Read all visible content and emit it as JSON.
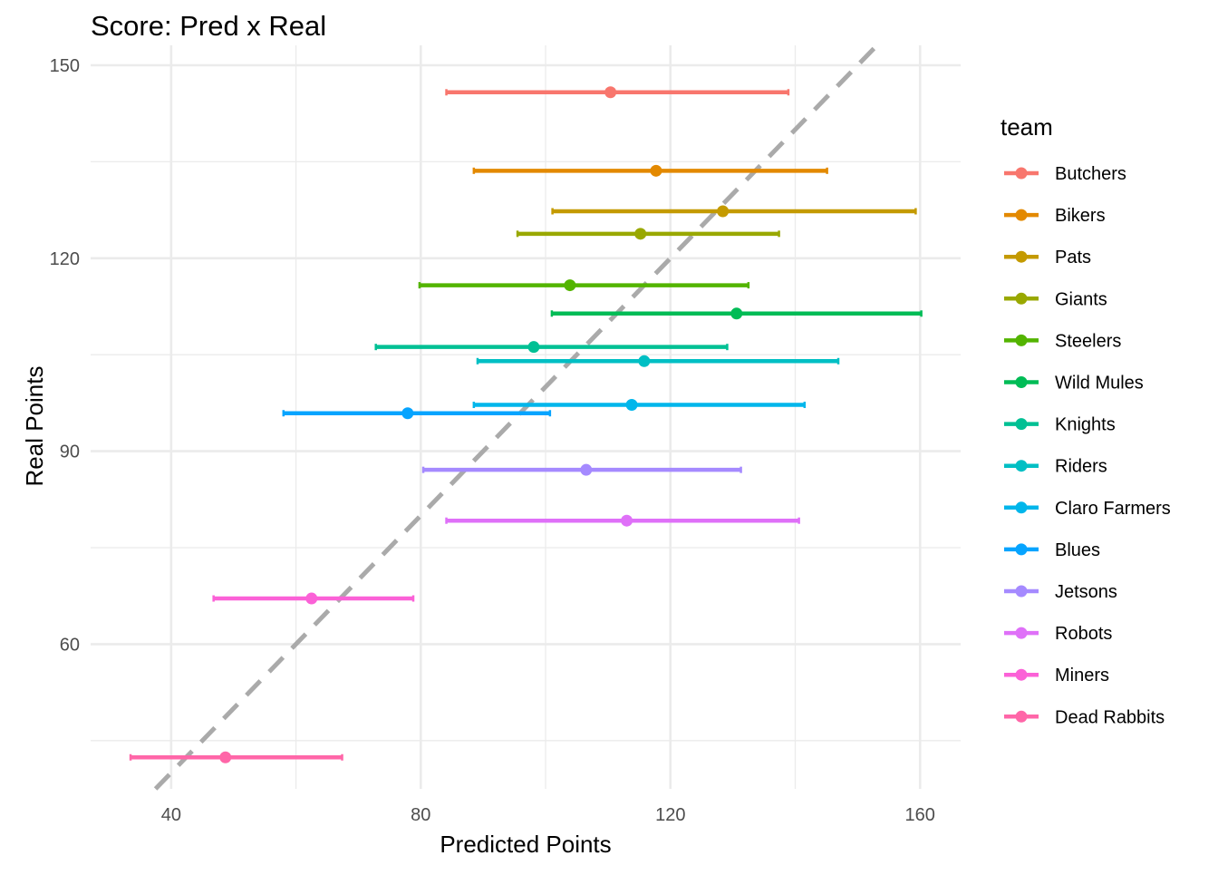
{
  "chart_data": {
    "type": "scatter",
    "title": "Score: Pred x Real",
    "xlabel": "Predicted Points",
    "ylabel": "Real Points",
    "xlim": [
      27.1,
      166.5
    ],
    "ylim": [
      37.5,
      153.1
    ],
    "xticks": [
      40,
      80,
      120,
      160
    ],
    "yticks": [
      60,
      90,
      120,
      150
    ],
    "grid": true,
    "reference_line": {
      "type": "identity",
      "style": "dashed",
      "color": "#AAAAAA"
    },
    "legend": {
      "title": "team",
      "placement": "right"
    },
    "series": [
      {
        "name": "Butchers",
        "color": "#F8766D",
        "pred": 110.4,
        "real": 145.8,
        "pred_low": 84.1,
        "pred_high": 138.9
      },
      {
        "name": "Bikers",
        "color": "#E38900",
        "pred": 117.7,
        "real": 133.6,
        "pred_low": 88.5,
        "pred_high": 145.1
      },
      {
        "name": "Pats",
        "color": "#C49A00",
        "pred": 128.4,
        "real": 127.3,
        "pred_low": 101.1,
        "pred_high": 159.3
      },
      {
        "name": "Giants",
        "color": "#99A800",
        "pred": 115.2,
        "real": 123.8,
        "pred_low": 95.5,
        "pred_high": 137.4
      },
      {
        "name": "Steelers",
        "color": "#53B400",
        "pred": 103.9,
        "real": 115.8,
        "pred_low": 79.8,
        "pred_high": 132.5
      },
      {
        "name": "Wild Mules",
        "color": "#00BC56",
        "pred": 130.6,
        "real": 111.4,
        "pred_low": 101.0,
        "pred_high": 160.2
      },
      {
        "name": "Knights",
        "color": "#00C094",
        "pred": 98.1,
        "real": 106.2,
        "pred_low": 72.8,
        "pred_high": 129.1
      },
      {
        "name": "Riders",
        "color": "#00BFC4",
        "pred": 115.8,
        "real": 104.0,
        "pred_low": 89.1,
        "pred_high": 146.9
      },
      {
        "name": "Claro Farmers",
        "color": "#00B6EB",
        "pred": 113.8,
        "real": 97.2,
        "pred_low": 88.5,
        "pred_high": 141.5
      },
      {
        "name": "Blues",
        "color": "#06A4FF",
        "pred": 77.9,
        "real": 95.9,
        "pred_low": 58.0,
        "pred_high": 100.7
      },
      {
        "name": "Jetsons",
        "color": "#A58AFF",
        "pred": 106.5,
        "real": 87.1,
        "pred_low": 80.4,
        "pred_high": 131.3
      },
      {
        "name": "Robots",
        "color": "#DF70F8",
        "pred": 113.0,
        "real": 79.2,
        "pred_low": 84.1,
        "pred_high": 140.6
      },
      {
        "name": "Miners",
        "color": "#FB61D7",
        "pred": 62.5,
        "real": 67.1,
        "pred_low": 46.8,
        "pred_high": 78.8
      },
      {
        "name": "Dead Rabbits",
        "color": "#FF66A8",
        "pred": 48.7,
        "real": 42.4,
        "pred_low": 33.5,
        "pred_high": 67.4
      }
    ]
  }
}
